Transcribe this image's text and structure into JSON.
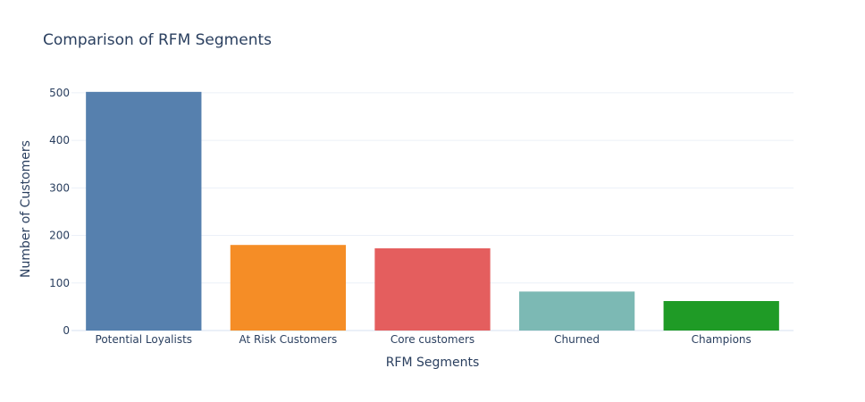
{
  "chart_data": {
    "type": "bar",
    "title": "Comparison of RFM Segments",
    "xlabel": "RFM Segments",
    "ylabel": "Number of Customers",
    "categories": [
      "Potential Loyalists",
      "At Risk Customers",
      "Core customers",
      "Churned",
      "Champions"
    ],
    "values": [
      502,
      180,
      173,
      82,
      62
    ],
    "colors": [
      "#5680ae",
      "#f58d26",
      "#e45e5e",
      "#7cb9b4",
      "#1f9b26"
    ],
    "yticks": [
      0,
      100,
      200,
      300,
      400,
      500
    ],
    "ylim": [
      0,
      528
    ],
    "grid": true,
    "legend": "none"
  }
}
